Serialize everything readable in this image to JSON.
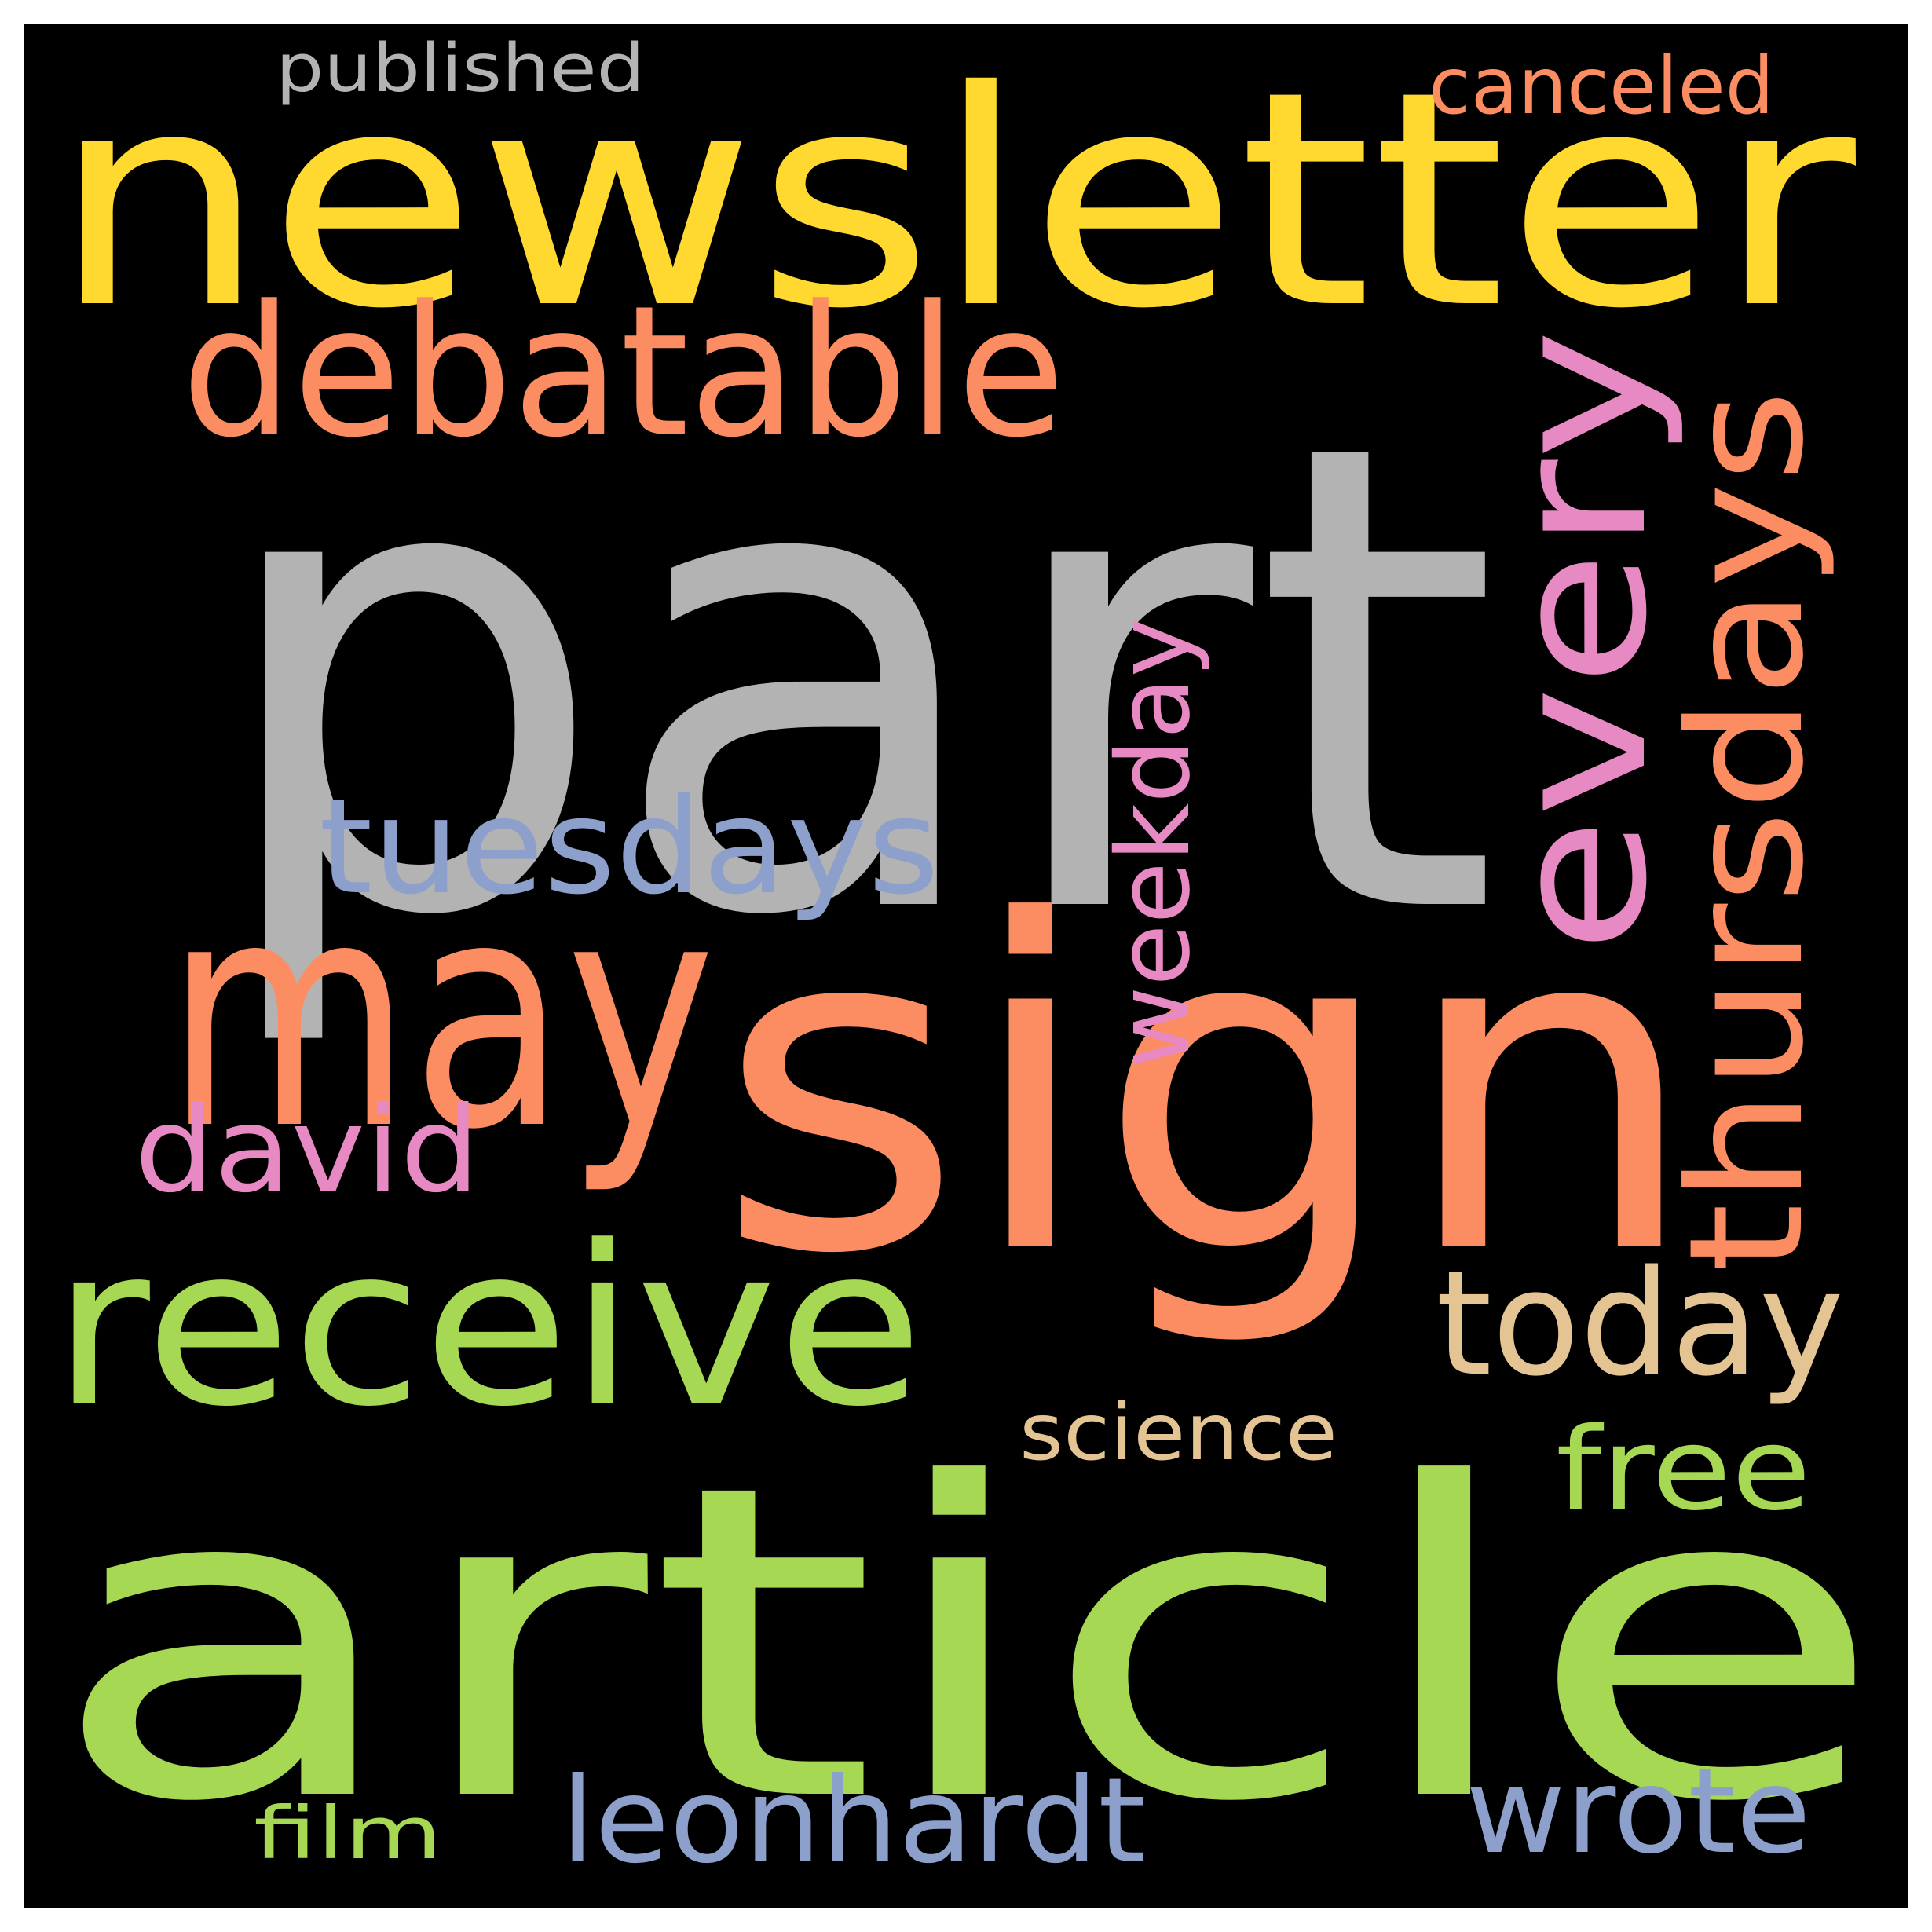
{
  "cloud": {
    "background": "#000000",
    "words": [
      {
        "text": "part",
        "color": "#b3b3b3"
      },
      {
        "text": "newsletter",
        "color": "#ffd92f"
      },
      {
        "text": "sign",
        "color": "#fc8d62"
      },
      {
        "text": "article",
        "color": "#a6d854"
      },
      {
        "text": "may",
        "color": "#fc8d62"
      },
      {
        "text": "every",
        "color": "#e78ac3"
      },
      {
        "text": "thursdays",
        "color": "#fc8d62"
      },
      {
        "text": "debatable",
        "color": "#fc8d62"
      },
      {
        "text": "receive",
        "color": "#a6d854"
      },
      {
        "text": "tuesdays",
        "color": "#8da0cb"
      },
      {
        "text": "today",
        "color": "#e5c494"
      },
      {
        "text": "weekday",
        "color": "#e78ac3"
      },
      {
        "text": "david",
        "color": "#e78ac3"
      },
      {
        "text": "leonhardt",
        "color": "#8da0cb"
      },
      {
        "text": "wrote",
        "color": "#8da0cb"
      },
      {
        "text": "free",
        "color": "#a6d854"
      },
      {
        "text": "science",
        "color": "#e5c494"
      },
      {
        "text": "canceled",
        "color": "#fc8d62"
      },
      {
        "text": "published",
        "color": "#b3b3b3"
      },
      {
        "text": "film",
        "color": "#a6d854"
      }
    ]
  }
}
